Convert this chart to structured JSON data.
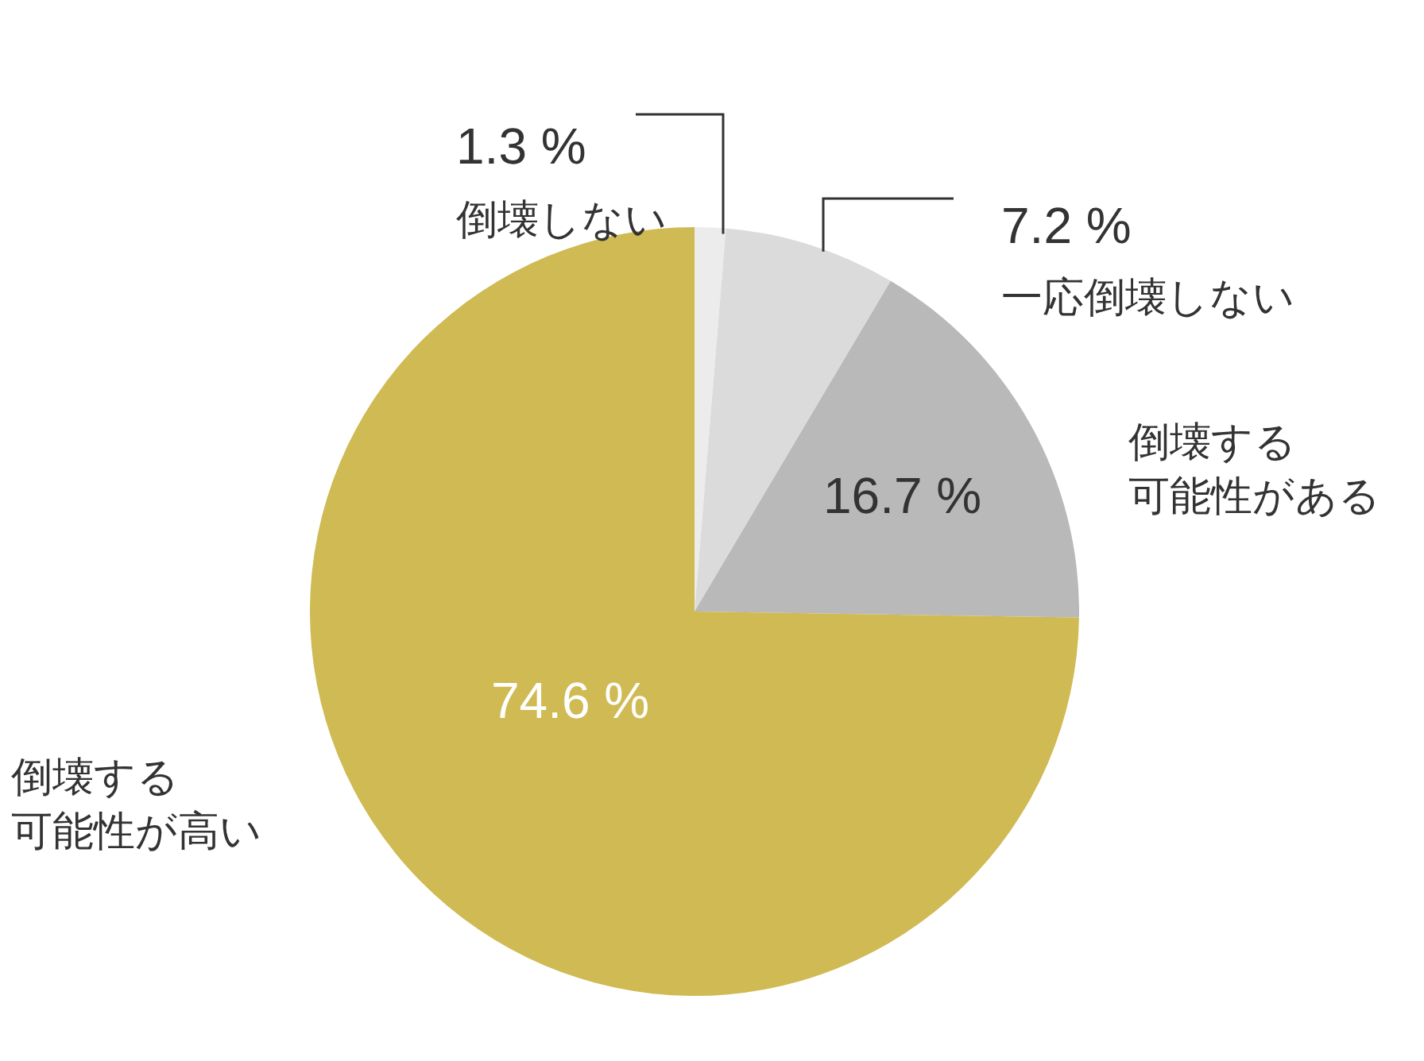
{
  "chart_data": {
    "type": "pie",
    "categories": [
      "倒壊しない",
      "一応倒壊しない",
      "倒壊する可能性がある",
      "倒壊する可能性が高い"
    ],
    "values": [
      1.3,
      7.2,
      16.7,
      74.6
    ],
    "colors": [
      "#ececec",
      "#dcdbdb",
      "#b9b9b9",
      "#cfba53"
    ],
    "value_labels": [
      "1.3 %",
      "7.2 %",
      "16.7 %",
      "74.6 %"
    ]
  }
}
